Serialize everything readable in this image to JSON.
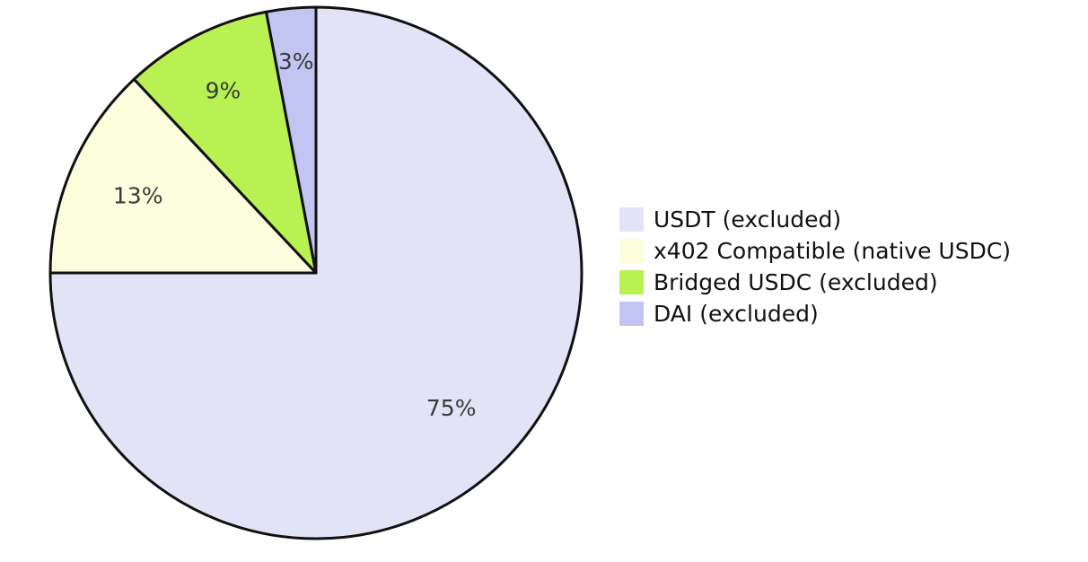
{
  "chart_data": {
    "type": "pie",
    "title": "",
    "start_angle_deg": 90,
    "direction": "clockwise",
    "legend_position": "right",
    "edge_color": "#111111",
    "label_color": "#3a3a3a",
    "slices": [
      {
        "label": "USDT (excluded)",
        "value": 75,
        "display": "75%",
        "color": "#e3e3f8"
      },
      {
        "label": "x402 Compatible (native USDC)",
        "value": 13,
        "display": "13%",
        "color": "#fcfddd"
      },
      {
        "label": "Bridged USDC (excluded)",
        "value": 9,
        "display": "9%",
        "color": "#b9f152"
      },
      {
        "label": "DAI (excluded)",
        "value": 3,
        "display": "3%",
        "color": "#c2c5f2"
      }
    ]
  }
}
